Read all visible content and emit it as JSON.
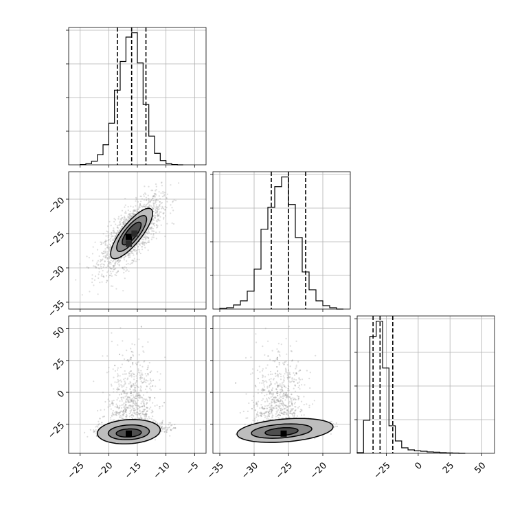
{
  "chart_data": {
    "type": "corner",
    "grid": true,
    "quantiles": [
      0.16,
      0.5,
      0.84
    ],
    "parameters": [
      {
        "range": [
          -27,
          -3
        ],
        "ticks": [
          -25,
          -20,
          -15,
          -10,
          -5
        ],
        "tick_labels": [
          "−25",
          "−20",
          "−15",
          "−10",
          "−5"
        ],
        "histogram": {
          "bin_edges": [
            -25,
            -24,
            -23,
            -22,
            -21,
            -20,
            -19,
            -18,
            -17,
            -16,
            -15,
            -14,
            -13,
            -12,
            -11,
            -10,
            -9,
            -8,
            -7
          ],
          "counts": [
            0.2,
            0.8,
            2.5,
            7,
            14,
            29,
            52,
            72,
            89,
            92,
            71,
            42,
            20,
            8,
            3,
            0.8,
            0.2,
            0
          ],
          "quantile_values": [
            -18.5,
            -16,
            -13.5
          ]
        }
      },
      {
        "range": [
          -36,
          -16
        ],
        "ticks": [
          -35,
          -30,
          -25,
          -20
        ],
        "tick_labels": [
          "−35",
          "−30",
          "−25",
          "−20"
        ],
        "histogram": {
          "bin_edges": [
            -35,
            -34,
            -33,
            -32,
            -31,
            -30,
            -29,
            -28,
            -27,
            -26,
            -25,
            -24,
            -23,
            -22,
            -21,
            -20,
            -19,
            -18,
            -17
          ],
          "counts": [
            0.5,
            1,
            3,
            6,
            13,
            29,
            58,
            74,
            89,
            96,
            76,
            52,
            27,
            14,
            6,
            2.5,
            1,
            0
          ],
          "quantile_values": [
            -27.5,
            -25,
            -22.5
          ]
        }
      },
      {
        "range": [
          -48,
          60
        ],
        "ticks": [
          -25,
          0,
          25,
          50
        ],
        "tick_labels": [
          "−25",
          "0",
          "25",
          "50"
        ],
        "histogram": {
          "bin_edges": [
            -48,
            -43,
            -38,
            -33,
            -28,
            -23,
            -18,
            -13,
            -8,
            -3,
            2,
            7,
            12,
            17,
            22,
            27,
            32,
            37
          ],
          "counts": [
            0.5,
            24,
            85,
            96,
            62,
            20,
            9,
            4,
            2.5,
            1.8,
            1.5,
            1,
            0.8,
            0.5,
            0.3,
            0.2,
            0
          ],
          "quantile_values": [
            -35.5,
            -30,
            -20
          ]
        }
      }
    ],
    "pairs": [
      {
        "x_param": 0,
        "y_param": 1,
        "samples": {
          "mean": [
            -16,
            -25
          ],
          "std": [
            2.6,
            2.6
          ],
          "corr": 0.72,
          "n": 1800
        },
        "contour_levels": [
          {
            "a": 1.9,
            "b": 0.62
          },
          {
            "a": 1.35,
            "b": 0.45
          },
          {
            "a": 0.85,
            "b": 0.3
          }
        ],
        "peak_cells": [
          [
            -16.5,
            -25.5
          ],
          [
            -15.5,
            -25
          ],
          [
            -16.5,
            -26.5
          ]
        ]
      },
      {
        "x_param": 0,
        "y_param": 2,
        "samples": {
          "mean": [
            -16,
            -30
          ],
          "std": [
            2.8,
            9
          ],
          "corr": 0.25,
          "n": 1800,
          "tail": true
        },
        "contour_levels": [
          {
            "cx": -16.5,
            "cy": -31,
            "rx": 5.5,
            "ry": 9.5
          },
          {
            "cx": -16.5,
            "cy": -31.5,
            "rx": 3.6,
            "ry": 5.8
          },
          {
            "cx": -16.5,
            "cy": -32,
            "rx": 2.2,
            "ry": 3.2
          }
        ],
        "peak_cells": [
          [
            -16.5,
            -32.5
          ]
        ]
      },
      {
        "x_param": 1,
        "y_param": 2,
        "samples": {
          "mean": [
            -25,
            -30
          ],
          "std": [
            2.6,
            9
          ],
          "corr": 0.4,
          "n": 1800,
          "tail": true
        },
        "contour_levels": [
          {
            "cx": -25.5,
            "cy": -30,
            "rx": 7,
            "ry": 9
          },
          {
            "cx": -26,
            "cy": -30.5,
            "rx": 4.4,
            "ry": 5.4
          },
          {
            "cx": -26,
            "cy": -31,
            "rx": 2.4,
            "ry": 3
          }
        ],
        "peak_cells": [
          [
            -25.7,
            -32.5
          ]
        ]
      }
    ],
    "colors": {
      "scatter": "#9e9e9e",
      "density_levels": [
        "#e8e8e8",
        "#bdbdbd",
        "#8a8a8a",
        "#4f4f4f",
        "#000000"
      ],
      "grid": "#b0b0b0",
      "lines": "#000000"
    }
  }
}
